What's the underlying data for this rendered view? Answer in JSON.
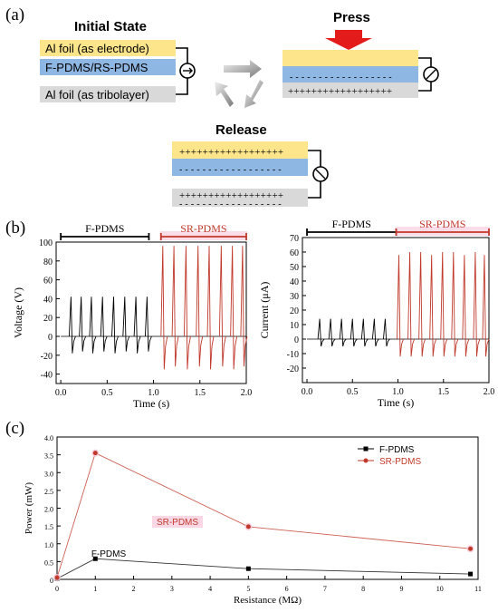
{
  "panel_labels": [
    "(a)",
    "(b)",
    "(c)"
  ],
  "schematic": {
    "initial_state_title": "Initial State",
    "press_title": "Press",
    "release_title": "Release",
    "layer_top_label": "Al foil (as electrode)",
    "layer_middle_label": "F-PDMS/RS-PDMS",
    "layer_bottom_label": "Al foil (as tribolayer)",
    "plus_row": "++++++++++++++++++",
    "dash_row": "- - - - - - - - - - - - - - - - - -",
    "colors": {
      "electrode": "#fde58c",
      "pdms": "#8fb7e3",
      "tribolayer": "#d9d9d9",
      "press_arrow": "#e31b1b"
    }
  },
  "chart_data": [
    {
      "type": "line",
      "title": "",
      "xlabel": "Time (s)",
      "ylabel": "Voltage (V)",
      "xlim": [
        -0.05,
        2.0
      ],
      "ylim": [
        -50,
        100
      ],
      "xticks": [
        "0.0",
        "0.5",
        "1.0",
        "1.5",
        "2.0"
      ],
      "yticks": [
        "-40",
        "-20",
        "0",
        "20",
        "40",
        "60",
        "80",
        "100"
      ],
      "segment_labels": [
        "F-PDMS",
        "SR-PDMS"
      ],
      "segments_x": [
        [
          0.0,
          0.95
        ],
        [
          1.08,
          2.0
        ]
      ],
      "series": [
        {
          "name": "F-PDMS",
          "color": "#000000",
          "peaks": [
            {
              "t": 0.11,
              "max": 42,
              "min": -18
            },
            {
              "t": 0.22,
              "max": 42,
              "min": -16
            },
            {
              "t": 0.33,
              "max": 42,
              "min": -18
            },
            {
              "t": 0.45,
              "max": 42,
              "min": -16
            },
            {
              "t": 0.57,
              "max": 42,
              "min": -18
            },
            {
              "t": 0.69,
              "max": 42,
              "min": -16
            },
            {
              "t": 0.81,
              "max": 42,
              "min": -18
            },
            {
              "t": 0.93,
              "max": 42,
              "min": -16
            }
          ]
        },
        {
          "name": "SR-PDMS",
          "color": "#c0392b",
          "peaks": [
            {
              "t": 1.1,
              "max": 96,
              "min": -35
            },
            {
              "t": 1.22,
              "max": 96,
              "min": -32
            },
            {
              "t": 1.35,
              "max": 96,
              "min": -35
            },
            {
              "t": 1.48,
              "max": 96,
              "min": -32
            },
            {
              "t": 1.6,
              "max": 96,
              "min": -35
            },
            {
              "t": 1.73,
              "max": 96,
              "min": -32
            },
            {
              "t": 1.85,
              "max": 96,
              "min": -35
            },
            {
              "t": 1.96,
              "max": 96,
              "min": -32
            }
          ]
        }
      ]
    },
    {
      "type": "line",
      "title": "",
      "xlabel": "Time (s)",
      "ylabel": "Current (μA)",
      "xlim": [
        -0.05,
        2.0
      ],
      "ylim": [
        -30,
        70
      ],
      "xticks": [
        "0.0",
        "0.5",
        "1.0",
        "1.5",
        "2.0"
      ],
      "yticks": [
        "-20",
        "-10",
        "0",
        "10",
        "20",
        "30",
        "40",
        "50",
        "60",
        "70"
      ],
      "segment_labels": [
        "F-PDMS",
        "SR-PDMS"
      ],
      "segments_x": [
        [
          0.0,
          0.98
        ],
        [
          0.98,
          2.0
        ]
      ],
      "series": [
        {
          "name": "F-PDMS",
          "color": "#000000",
          "peaks": [
            {
              "t": 0.14,
              "max": 14,
              "min": -5
            },
            {
              "t": 0.26,
              "max": 14,
              "min": -5
            },
            {
              "t": 0.38,
              "max": 14,
              "min": -5
            },
            {
              "t": 0.5,
              "max": 14,
              "min": -5
            },
            {
              "t": 0.62,
              "max": 14,
              "min": -5
            },
            {
              "t": 0.74,
              "max": 14,
              "min": -5
            },
            {
              "t": 0.86,
              "max": 14,
              "min": -5
            }
          ]
        },
        {
          "name": "SR-PDMS",
          "color": "#c0392b",
          "peaks": [
            {
              "t": 1.01,
              "max": 58,
              "min": -12
            },
            {
              "t": 1.13,
              "max": 60,
              "min": -12
            },
            {
              "t": 1.25,
              "max": 60,
              "min": -12
            },
            {
              "t": 1.37,
              "max": 58,
              "min": -12
            },
            {
              "t": 1.49,
              "max": 60,
              "min": -12
            },
            {
              "t": 1.61,
              "max": 60,
              "min": -12
            },
            {
              "t": 1.73,
              "max": 58,
              "min": -12
            },
            {
              "t": 1.85,
              "max": 60,
              "min": -12
            },
            {
              "t": 1.95,
              "max": 58,
              "min": -12
            }
          ]
        }
      ]
    },
    {
      "type": "line",
      "title": "",
      "xlabel": "Resistance (MΩ)",
      "ylabel": "Power (mW)",
      "xlim": [
        0,
        11
      ],
      "ylim": [
        0,
        4.0
      ],
      "xticks": [
        "0",
        "1",
        "2",
        "3",
        "4",
        "5",
        "6",
        "7",
        "8",
        "9",
        "10",
        "11"
      ],
      "yticks": [
        "0",
        "0.5",
        "1.0",
        "1.5",
        "2.0",
        "2.5",
        "3.0",
        "3.5",
        "4.0"
      ],
      "legend": "top-right",
      "annotations": [
        "SR-PDMS",
        "F-PDMS"
      ],
      "series": [
        {
          "name": "F-PDMS",
          "color": "#000000",
          "x": [
            0,
            1,
            5,
            10.8
          ],
          "y": [
            0.02,
            0.58,
            0.3,
            0.15
          ]
        },
        {
          "name": "SR-PDMS",
          "color": "#c0392b",
          "x": [
            0,
            1,
            5,
            10.8
          ],
          "y": [
            0.05,
            3.55,
            1.48,
            0.86
          ]
        }
      ]
    }
  ]
}
